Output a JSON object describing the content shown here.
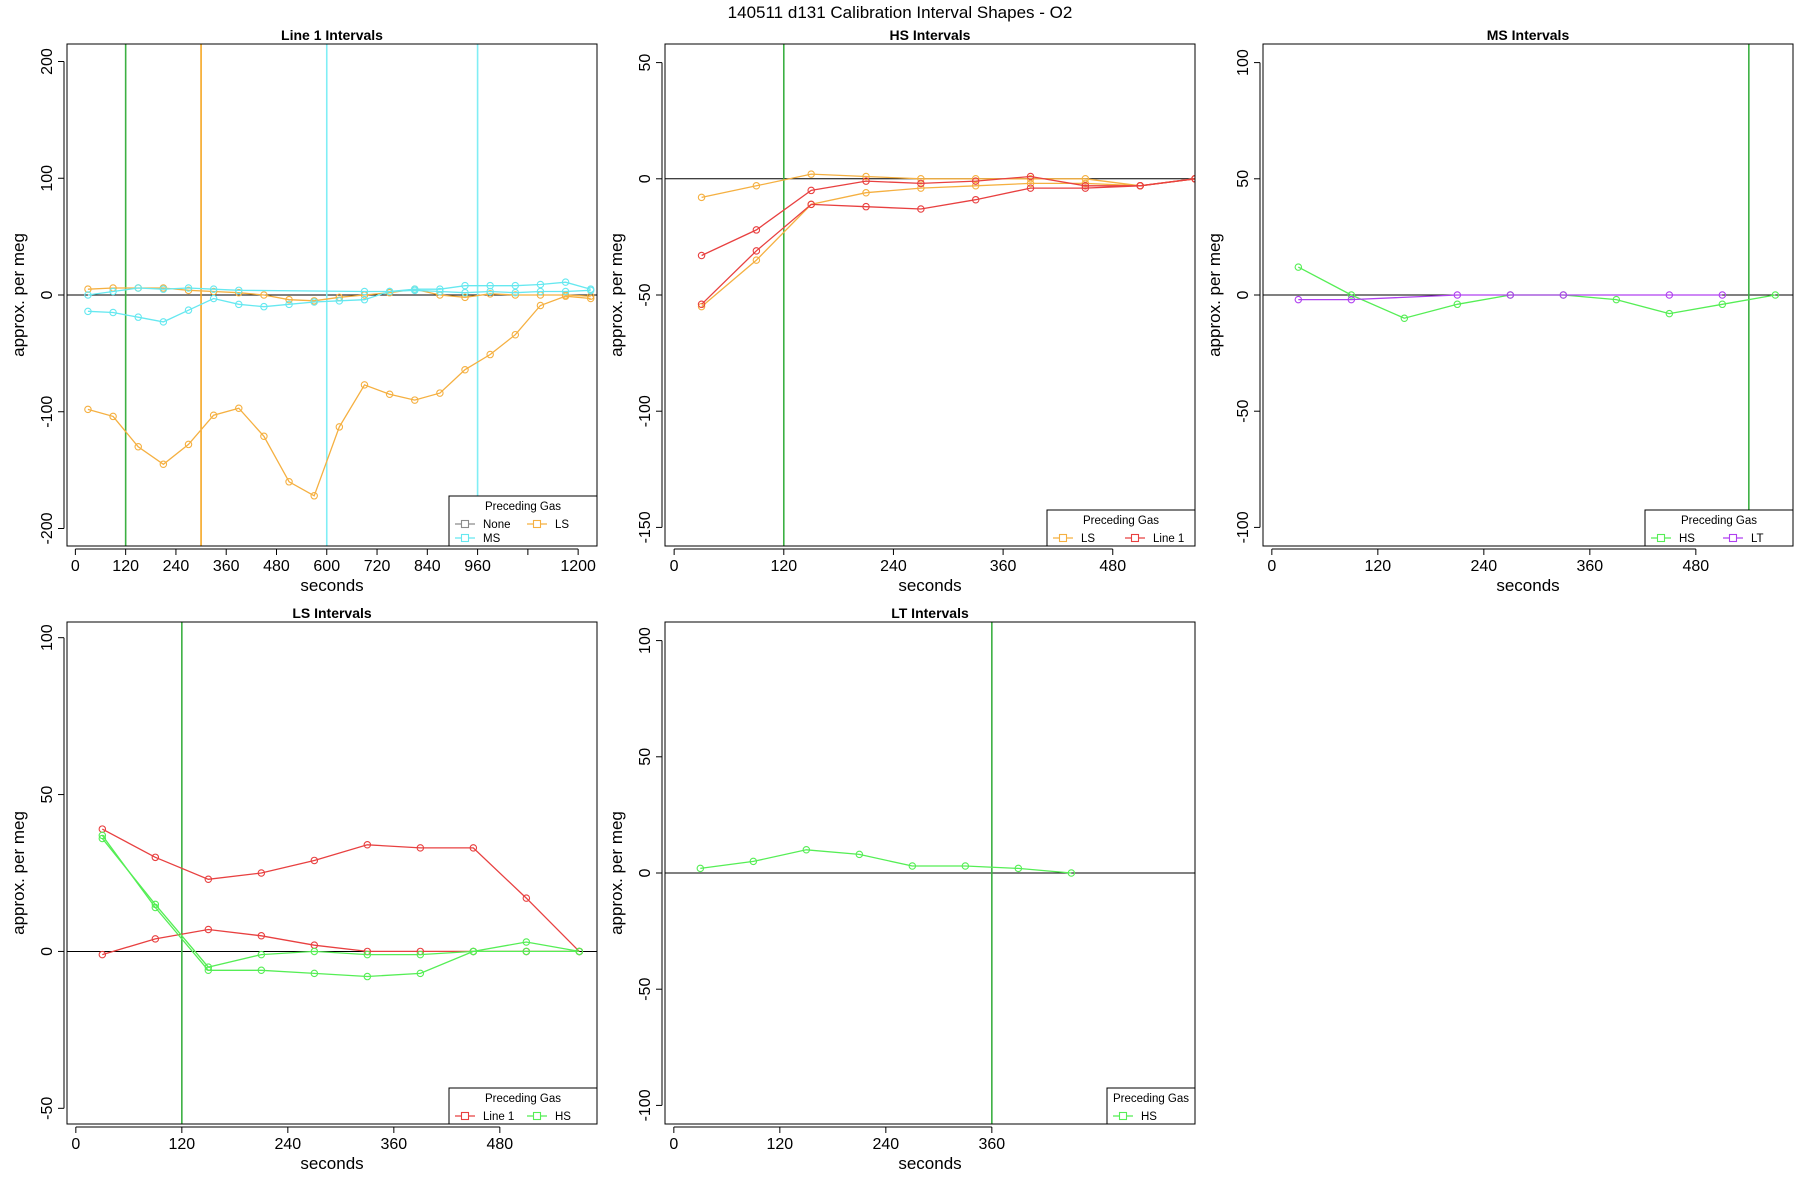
{
  "title": "140511   d131   Calibration Interval Shapes - O2",
  "colors": {
    "None": "#8c8c8c",
    "LS": "#f5b041",
    "MS": "#66e8f0",
    "HS": "#55ee55",
    "LT": "#b040f0",
    "Line 1": "#e84040",
    "zero": "#000000",
    "vline_green": "#3cb043",
    "vline_orange": "#f5a623",
    "vline_cyan": "#80eef5"
  },
  "chart_data": [
    {
      "type": "line",
      "title": "Line 1 Intervals",
      "xlabel": "seconds",
      "ylabel": "approx. per meg",
      "xlim": [
        -20,
        1245
      ],
      "ylim": [
        -215,
        215
      ],
      "xticks": [
        0,
        120,
        240,
        360,
        480,
        600,
        720,
        840,
        960,
        1080,
        1200
      ],
      "xtick_labels": [
        "0",
        "120",
        "240",
        "360",
        "480",
        "600",
        "720",
        "840",
        "960",
        "",
        "1200"
      ],
      "yticks": [
        -200,
        -100,
        0,
        100,
        200
      ],
      "vlines": [
        {
          "x": 120,
          "color": "vline_green"
        },
        {
          "x": 300,
          "color": "vline_orange"
        },
        {
          "x": 600,
          "color": "vline_cyan"
        },
        {
          "x": 960,
          "color": "vline_cyan"
        }
      ],
      "legend": {
        "title": "Preceding Gas",
        "position": "bottom-right",
        "columns": 2,
        "items": [
          {
            "label": "None",
            "color": "None"
          },
          {
            "label": "LS",
            "color": "LS"
          },
          {
            "label": "MS",
            "color": "MS"
          }
        ]
      },
      "series": [
        {
          "name": "",
          "color": "LS",
          "x": [
            30,
            90,
            150,
            210,
            270,
            330,
            390,
            450,
            510,
            570,
            630,
            690,
            750,
            810,
            870,
            930,
            990,
            1050,
            1110,
            1170,
            1230
          ],
          "y": [
            -98,
            -104,
            -130,
            -145,
            -128,
            -103,
            -97,
            -121,
            -160,
            -172,
            -113,
            -77,
            -85,
            -90,
            -84,
            -64,
            -51,
            -34,
            -9,
            -1,
            -3
          ]
        },
        {
          "name": "",
          "color": "LS",
          "x": [
            30,
            90,
            150,
            210,
            270,
            330,
            390,
            450,
            510,
            570,
            630,
            690,
            750,
            810,
            870,
            930,
            990,
            1050,
            1110,
            1170,
            1230
          ],
          "y": [
            5,
            6,
            6,
            6,
            4,
            3,
            2,
            0,
            -4,
            -5,
            -2,
            0,
            2,
            5,
            0,
            -2,
            1,
            0,
            0,
            0,
            -1
          ]
        },
        {
          "name": "",
          "color": "MS",
          "x": [
            30,
            90,
            150,
            210,
            270,
            330,
            390,
            450,
            510,
            570,
            630,
            690,
            750,
            810,
            870,
            930,
            990,
            1050,
            1110,
            1170,
            1230
          ],
          "y": [
            -14,
            -15,
            -19,
            -23,
            -13,
            -3,
            -8,
            -10,
            -8,
            -6,
            -5,
            -4,
            3,
            5,
            5,
            8,
            8,
            8,
            9,
            11,
            5
          ]
        },
        {
          "name": "",
          "color": "MS",
          "x": [
            30,
            90,
            150,
            210,
            270,
            330,
            390,
            690,
            750,
            810,
            870,
            930,
            990,
            1050,
            1110,
            1170,
            1230
          ],
          "y": [
            0,
            3,
            6,
            5,
            6,
            5,
            4,
            3,
            3,
            4,
            3,
            2,
            3,
            2,
            3,
            3,
            4
          ]
        }
      ]
    },
    {
      "type": "line",
      "title": "HS Intervals",
      "xlabel": "seconds",
      "ylabel": "approx. per meg",
      "xlim": [
        -10,
        570
      ],
      "ylim": [
        -158,
        58
      ],
      "xticks": [
        0,
        120,
        240,
        360,
        480
      ],
      "xtick_labels": [
        "0",
        "120",
        "240",
        "360",
        "480"
      ],
      "yticks": [
        -150,
        -100,
        -50,
        0,
        50
      ],
      "vlines": [
        {
          "x": 120,
          "color": "vline_green"
        }
      ],
      "legend": {
        "title": "Preceding Gas",
        "position": "bottom-right",
        "columns": 2,
        "items": [
          {
            "label": "LS",
            "color": "LS"
          },
          {
            "label": "Line 1",
            "color": "Line 1"
          }
        ]
      },
      "series": [
        {
          "name": "",
          "color": "LS",
          "x": [
            30,
            90,
            150,
            210,
            270,
            330,
            390,
            450,
            510,
            570
          ],
          "y": [
            -8,
            -3,
            2,
            1,
            0,
            0,
            0,
            0,
            -3,
            0
          ]
        },
        {
          "name": "",
          "color": "LS",
          "x": [
            30,
            90,
            150,
            210,
            270,
            330,
            390,
            450,
            510,
            570
          ],
          "y": [
            -55,
            -35,
            -11,
            -6,
            -4,
            -3,
            -2,
            -2,
            -3,
            0
          ]
        },
        {
          "name": "",
          "color": "Line 1",
          "x": [
            30,
            90,
            150,
            210,
            270,
            330,
            390,
            450,
            510,
            570
          ],
          "y": [
            -33,
            -22,
            -5,
            -1,
            -2,
            -1,
            1,
            -3,
            -3,
            0
          ]
        },
        {
          "name": "",
          "color": "Line 1",
          "x": [
            30,
            90,
            150,
            210,
            270,
            330,
            390,
            450,
            510,
            570
          ],
          "y": [
            -54,
            -31,
            -11,
            -12,
            -13,
            -9,
            -4,
            -4,
            -3,
            0
          ]
        }
      ]
    },
    {
      "type": "line",
      "title": "MS Intervals",
      "xlabel": "seconds",
      "ylabel": "approx. per meg",
      "xlim": [
        -10,
        590
      ],
      "ylim": [
        -108,
        108
      ],
      "xticks": [
        0,
        120,
        240,
        360,
        480
      ],
      "xtick_labels": [
        "0",
        "120",
        "240",
        "360",
        "480"
      ],
      "yticks": [
        -100,
        -50,
        0,
        50,
        100
      ],
      "vlines": [
        {
          "x": 540,
          "color": "vline_green"
        }
      ],
      "legend": {
        "title": "Preceding Gas",
        "position": "bottom-right",
        "columns": 2,
        "items": [
          {
            "label": "HS",
            "color": "HS"
          },
          {
            "label": "LT",
            "color": "LT"
          }
        ]
      },
      "series": [
        {
          "name": "",
          "color": "HS",
          "x": [
            30,
            90,
            150,
            210,
            270,
            330,
            390,
            450,
            510,
            570
          ],
          "y": [
            12,
            0,
            -10,
            -4,
            0,
            0,
            -2,
            -8,
            -4,
            0
          ]
        },
        {
          "name": "",
          "color": "LT",
          "x": [
            30,
            90,
            210,
            270,
            330,
            450,
            510
          ],
          "y": [
            -2,
            -2,
            0,
            0,
            0,
            0,
            0
          ]
        }
      ]
    },
    {
      "type": "line",
      "title": "LS Intervals",
      "xlabel": "seconds",
      "ylabel": "approx. per meg",
      "xlim": [
        -10,
        590
      ],
      "ylim": [
        -55,
        105
      ],
      "xticks": [
        0,
        120,
        240,
        360,
        480
      ],
      "xtick_labels": [
        "0",
        "120",
        "240",
        "360",
        "480"
      ],
      "yticks": [
        -50,
        0,
        50,
        100
      ],
      "vlines": [
        {
          "x": 120,
          "color": "vline_green"
        }
      ],
      "legend": {
        "title": "Preceding Gas",
        "position": "bottom-right",
        "columns": 2,
        "items": [
          {
            "label": "Line 1",
            "color": "Line 1"
          },
          {
            "label": "HS",
            "color": "HS"
          }
        ]
      },
      "series": [
        {
          "name": "",
          "color": "Line 1",
          "x": [
            30,
            90,
            150,
            210,
            270,
            330,
            390,
            450,
            510,
            570
          ],
          "y": [
            39,
            30,
            23,
            25,
            29,
            34,
            33,
            33,
            17,
            0
          ]
        },
        {
          "name": "",
          "color": "Line 1",
          "x": [
            30,
            90,
            150,
            210,
            270,
            330,
            390,
            450,
            510,
            570
          ],
          "y": [
            -1,
            4,
            7,
            5,
            2,
            0,
            0,
            0,
            0,
            0
          ]
        },
        {
          "name": "",
          "color": "HS",
          "x": [
            30,
            90,
            150,
            210,
            270,
            330,
            390,
            450,
            510,
            570
          ],
          "y": [
            36,
            15,
            -5,
            -1,
            0,
            -1,
            -1,
            0,
            0,
            0
          ]
        },
        {
          "name": "",
          "color": "HS",
          "x": [
            30,
            90,
            150,
            210,
            270,
            330,
            390,
            450,
            510,
            570
          ],
          "y": [
            37,
            14,
            -6,
            -6,
            -7,
            -8,
            -7,
            0,
            3,
            0
          ]
        }
      ]
    },
    {
      "type": "line",
      "title": "LT Intervals",
      "xlabel": "seconds",
      "ylabel": "approx. per meg",
      "xlim": [
        -10,
        590
      ],
      "ylim": [
        -108,
        108
      ],
      "xticks": [
        0,
        120,
        240,
        360
      ],
      "xtick_labels": [
        "0",
        "120",
        "240",
        "360"
      ],
      "yticks": [
        -100,
        -50,
        0,
        50,
        100
      ],
      "vlines": [
        {
          "x": 360,
          "color": "vline_green"
        }
      ],
      "legend": {
        "title": "Preceding Gas",
        "position": "bottom-right",
        "columns": 1,
        "items": [
          {
            "label": "HS",
            "color": "HS"
          }
        ]
      },
      "series": [
        {
          "name": "",
          "color": "HS",
          "x": [
            30,
            90,
            150,
            210,
            270,
            330,
            390,
            450
          ],
          "y": [
            2,
            5,
            10,
            8,
            3,
            3,
            2,
            0
          ]
        }
      ]
    }
  ]
}
